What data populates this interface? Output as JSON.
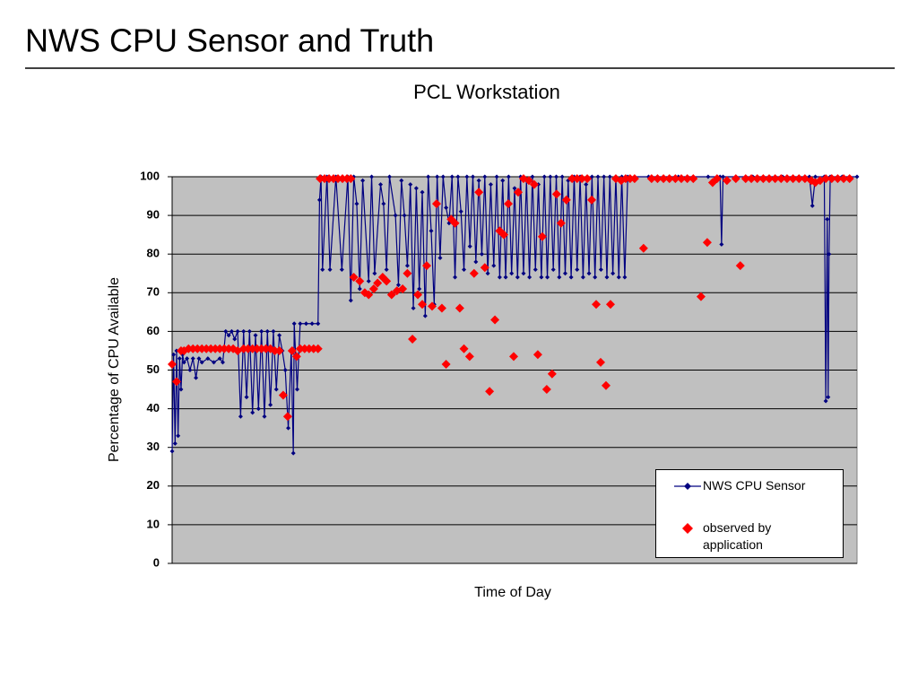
{
  "header": {
    "title": "NWS CPU Sensor and Truth"
  },
  "chart_data": {
    "type": "line",
    "title": "PCL Workstation",
    "xlabel": "Time of Day",
    "ylabel": "Percentage of CPU Available",
    "xlim": [
      0,
      230
    ],
    "ylim": [
      0,
      100
    ],
    "yticks": [
      0,
      10,
      20,
      30,
      40,
      50,
      60,
      70,
      80,
      90,
      100
    ],
    "grid": true,
    "legend": "lower right",
    "series": [
      {
        "name": "NWS CPU Sensor",
        "color": "#000080",
        "marker": "diamond",
        "x": [
          0,
          0.5,
          1,
          1.5,
          2,
          2.5,
          3,
          3.5,
          4,
          5,
          6,
          7,
          8,
          9,
          10,
          12,
          14,
          16,
          17,
          18,
          19,
          20,
          21,
          22,
          23,
          24,
          25,
          26,
          27,
          28,
          29,
          30,
          31,
          32,
          33,
          34,
          35,
          36,
          37,
          38,
          39,
          40,
          40.7,
          41,
          42,
          43,
          45,
          47,
          49,
          49.5,
          50,
          50.5,
          52,
          53,
          55,
          57,
          59,
          60,
          61,
          62,
          63,
          64,
          66,
          67,
          68,
          70,
          71,
          72,
          73,
          75,
          76,
          77,
          78,
          79,
          80,
          81,
          82,
          83,
          84,
          85,
          86,
          87,
          88,
          89,
          90,
          91,
          92,
          93,
          94,
          95,
          96,
          97,
          98,
          99,
          100,
          101,
          102,
          103,
          104,
          105,
          106,
          107,
          108,
          109,
          110,
          111,
          112,
          113,
          114,
          115,
          116,
          117,
          118,
          119,
          120,
          121,
          122,
          123,
          124,
          125,
          126,
          127,
          128,
          129,
          130,
          131,
          132,
          133,
          134,
          135,
          136,
          137,
          138,
          139,
          140,
          141,
          142,
          143,
          144,
          145,
          146,
          147,
          148,
          149,
          150,
          151,
          152,
          153,
          160,
          170,
          180,
          184,
          184.5,
          185,
          195,
          205,
          214,
          215,
          216,
          219,
          219.5,
          220,
          220.3,
          220.6,
          221,
          225,
          230
        ],
        "values": [
          29,
          54,
          31,
          55,
          33,
          53,
          45,
          54,
          52,
          53,
          50,
          53,
          48,
          53,
          52,
          53,
          52,
          53,
          52,
          60,
          59,
          60,
          58,
          60,
          38,
          60,
          43,
          60,
          39,
          59,
          40,
          60,
          38,
          60,
          41,
          60,
          45,
          59,
          55,
          50,
          35,
          55,
          28.5,
          62,
          45,
          62,
          62,
          62,
          62,
          94,
          100,
          76,
          100,
          76,
          100,
          76,
          100,
          68,
          100,
          93,
          71,
          99,
          73,
          100,
          75,
          98,
          93,
          76,
          100,
          90,
          72,
          99,
          90,
          77,
          98,
          66,
          97,
          71,
          96,
          64,
          100,
          86,
          67,
          100,
          79,
          100,
          92,
          88,
          100,
          74,
          100,
          91,
          76,
          100,
          82,
          100,
          78,
          99,
          80,
          100,
          75,
          98,
          77,
          100,
          74,
          99,
          74,
          100,
          75,
          97,
          74,
          100,
          75,
          99,
          74,
          100,
          76,
          98,
          74,
          100,
          74,
          100,
          76,
          100,
          74,
          100,
          75,
          99,
          74,
          100,
          76,
          100,
          74,
          98,
          75,
          100,
          74,
          100,
          76,
          100,
          74,
          100,
          75,
          100,
          74,
          100,
          74,
          100,
          100,
          100,
          100,
          100,
          82.5,
          100,
          100,
          100,
          100,
          92.5,
          100,
          100,
          42,
          89,
          43,
          80,
          100,
          100,
          100
        ]
      },
      {
        "name": "observed by application",
        "color": "#ff0000",
        "marker": "diamond",
        "line": false,
        "x": [
          0,
          1.5,
          3,
          4,
          5.5,
          7,
          8.5,
          10,
          11.5,
          13,
          14.5,
          16,
          17.5,
          19,
          20.5,
          22,
          24,
          25.5,
          27,
          28.5,
          30,
          31.5,
          33,
          34.5,
          36,
          37.3,
          38.8,
          40.3,
          41.8,
          43,
          44.5,
          46,
          47.5,
          49,
          49.7,
          51.2,
          52.7,
          54.2,
          55.7,
          57.2,
          58.7,
          60,
          61,
          63,
          64.7,
          66,
          67.7,
          69,
          70.7,
          72,
          73.7,
          75.5,
          77.4,
          79,
          80.7,
          82.5,
          84,
          85.5,
          87.3,
          88.8,
          90.6,
          92,
          93.7,
          95,
          96.6,
          98,
          99.9,
          101.4,
          103,
          105,
          106.6,
          108.4,
          110,
          111.4,
          112.9,
          114.7,
          116.2,
          118,
          119.8,
          121.6,
          122.8,
          124.3,
          125.8,
          127.6,
          129.1,
          130.6,
          132.4,
          134.3,
          136,
          137.6,
          139.4,
          140.9,
          142.4,
          143.9,
          145.7,
          147.2,
          149,
          150.8,
          152.3,
          153.8,
          155.3,
          158.3,
          161,
          163,
          165,
          167,
          169,
          171,
          173,
          175,
          177.6,
          179.7,
          181.5,
          183,
          186.3,
          189.3,
          190.8,
          192.6,
          194.5,
          196.5,
          198.5,
          200.5,
          202.5,
          204.5,
          206.5,
          208.5,
          210.5,
          212.5,
          214.6,
          216,
          217.6,
          219.5,
          221.5,
          223.5,
          225.5,
          227.5
        ],
        "values": [
          51.5,
          47,
          55,
          55,
          55.5,
          55.5,
          55.5,
          55.5,
          55.5,
          55.5,
          55.5,
          55.5,
          55.5,
          55.5,
          55.5,
          55,
          55.5,
          55.5,
          55.5,
          55.5,
          55.5,
          55.5,
          55.5,
          55,
          55,
          43.5,
          38,
          55,
          53.5,
          55.5,
          55.5,
          55.5,
          55.5,
          55.5,
          99.5,
          99.5,
          99.5,
          99.5,
          99.5,
          99.5,
          99.5,
          99.5,
          74,
          73,
          70,
          69.5,
          71,
          72.5,
          74,
          73,
          69.5,
          70.5,
          71,
          75,
          58,
          69.5,
          67,
          77,
          66.5,
          93,
          66,
          51.5,
          89,
          88,
          66,
          55.5,
          53.5,
          75,
          96,
          76.5,
          44.5,
          63,
          86,
          85,
          93,
          53.5,
          96,
          99.5,
          99,
          98,
          54,
          84.5,
          45,
          49,
          95.5,
          88,
          94,
          99.5,
          99.5,
          99.5,
          99.5,
          94,
          67,
          52,
          46,
          67,
          99.5,
          99,
          99.5,
          99.5,
          99.5,
          81.5,
          99.5,
          99.5,
          99.5,
          99.5,
          99.5,
          99.5,
          99.5,
          99.5,
          69,
          83,
          98.5,
          99.5,
          99,
          99.5,
          77,
          99.5,
          99.5,
          99.5,
          99.5,
          99.5,
          99.5,
          99.5,
          99.5,
          99.5,
          99.5,
          99.5,
          99,
          98.5,
          99,
          99.5,
          99.5,
          99.5,
          99.5,
          99.5
        ]
      }
    ]
  }
}
